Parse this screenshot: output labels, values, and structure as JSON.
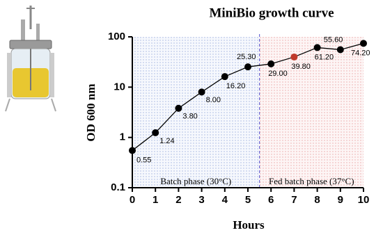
{
  "chart_data": {
    "type": "line",
    "title": "MiniBio growth curve",
    "xlabel": "Hours",
    "ylabel": "OD 600 nm",
    "x": [
      0,
      1,
      2,
      3,
      4,
      5,
      6,
      7,
      8,
      9,
      10
    ],
    "series": [
      {
        "color": "#000000",
        "values": [
          0.55,
          1.24,
          3.8,
          8,
          16.2,
          25.3,
          29,
          39.8,
          61.2,
          55.6,
          74.2
        ],
        "value_labels": [
          "0.55",
          "1.24",
          "3.80",
          "8.00",
          "16.20",
          "25.30",
          "29.00",
          "39.80",
          "61.20",
          "55.60",
          "74.20"
        ],
        "marker_colors": [
          "#000000",
          "#000000",
          "#000000",
          "#000000",
          "#000000",
          "#000000",
          "#000000",
          "#c0392b",
          "#000000",
          "#000000",
          "#000000"
        ]
      }
    ],
    "xlim": [
      0,
      10
    ],
    "xticks": [
      0,
      1,
      2,
      3,
      4,
      5,
      6,
      7,
      8,
      9,
      10
    ],
    "ylim": [
      0.1,
      100
    ],
    "yticks": [
      0.1,
      1,
      10,
      100
    ],
    "yscale": "log",
    "phase_boundary": 5.5,
    "annotations": [
      "Batch phase (30°C)",
      "Fed batch phase (37°C)"
    ],
    "phase_colors": [
      "#b8c8ec",
      "#f2c0c0"
    ]
  }
}
